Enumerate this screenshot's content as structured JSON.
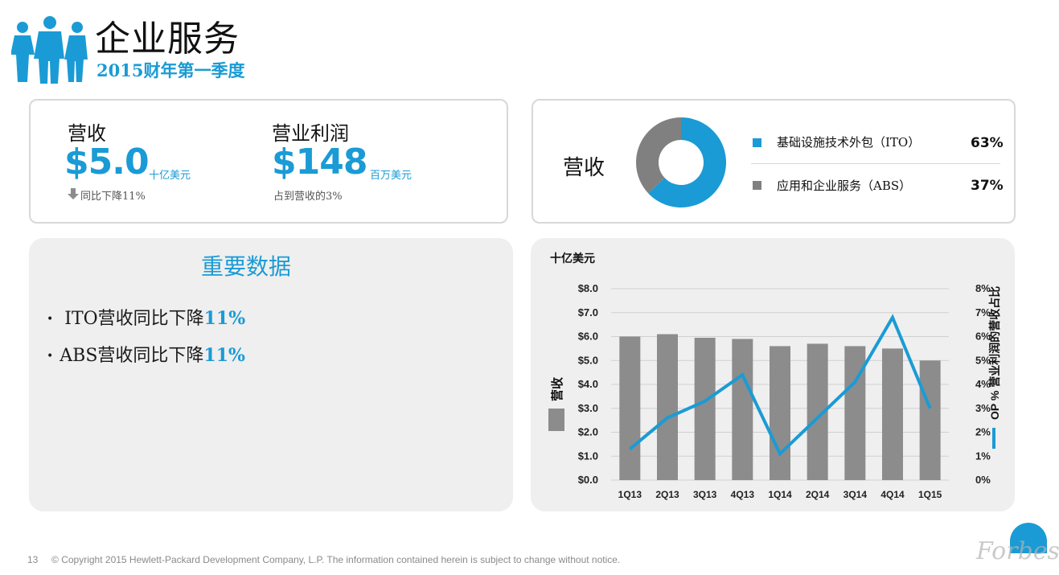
{
  "header": {
    "title": "企业服务",
    "subtitle": "2015财年第一季度"
  },
  "kpis": {
    "revenue": {
      "label": "营收",
      "value": "$5.0",
      "unit": "十亿美元",
      "note": "同比下降11%"
    },
    "operating_profit": {
      "label": "营业利润",
      "value": "$148",
      "unit": "百万美元",
      "note": "占到营收的3%"
    }
  },
  "revenue_mix": {
    "label": "营收",
    "items": [
      {
        "name": "基础设施技术外包（ITO）",
        "pct": "63%",
        "share": 0.63,
        "color": "#1a9bd5"
      },
      {
        "name": "应用和企业服务（ABS）",
        "pct": "37%",
        "share": 0.37,
        "color": "#808080"
      }
    ]
  },
  "highlights": {
    "title": "重要数据",
    "items": [
      {
        "text": "ITO营收同比下降",
        "emph": "11%"
      },
      {
        "text": "ABS营收同比下降",
        "emph": "11%"
      }
    ]
  },
  "chart_data": {
    "type": "bar",
    "categories": [
      "1Q13",
      "2Q13",
      "3Q13",
      "4Q13",
      "1Q14",
      "2Q14",
      "3Q14",
      "4Q14",
      "1Q15"
    ],
    "series": [
      {
        "name": "营收",
        "kind": "bar",
        "axis": "left",
        "color": "#8c8c8c",
        "values": [
          6.0,
          6.1,
          5.95,
          5.9,
          5.6,
          5.7,
          5.6,
          5.5,
          5.0
        ]
      },
      {
        "name": "OP % 营业利润的营收占比",
        "kind": "line",
        "axis": "right",
        "color": "#1a9bd5",
        "values": [
          1.3,
          2.6,
          3.3,
          4.4,
          1.1,
          2.6,
          4.1,
          6.8,
          3.0
        ]
      }
    ],
    "unit_label": "十亿美元",
    "ylabel_left": "营收",
    "ylabel_right": "OP % 营业利润的营收占比",
    "ylim_left": [
      0,
      8
    ],
    "ylim_right": [
      0,
      8
    ],
    "yticks_left": [
      "$0.0",
      "$1.0",
      "$2.0",
      "$3.0",
      "$4.0",
      "$5.0",
      "$6.0",
      "$7.0",
      "$8.0"
    ],
    "yticks_right": [
      "0%",
      "1%",
      "2%",
      "3%",
      "4%",
      "5%",
      "6%",
      "7%",
      "8%"
    ],
    "grid": true
  },
  "footer": {
    "page_number": "13",
    "copyright": "© Copyright 2015 Hewlett-Packard Development Company, L.P.  The information contained herein is subject to change without notice."
  },
  "watermark": "Forbes"
}
